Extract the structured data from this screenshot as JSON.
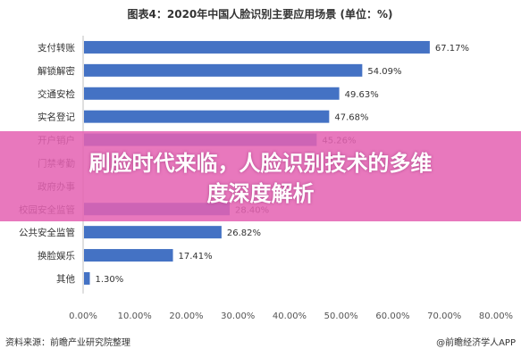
{
  "chart_data": {
    "type": "bar",
    "orientation": "horizontal",
    "title": "图表4：2020年中国人脸识别主要应用场景 (单位：%)",
    "categories": [
      "支付转账",
      "解锁解密",
      "交通安检",
      "实名登记",
      "开户销户",
      "门禁考勤",
      "政府办事",
      "校园安全监管",
      "公共安全监管",
      "换脸娱乐",
      "其他"
    ],
    "values": [
      67.17,
      54.09,
      49.63,
      47.68,
      45.26,
      null,
      null,
      28.4,
      26.82,
      17.41,
      1.3
    ],
    "value_labels": [
      "67.17%",
      "54.09%",
      "49.63%",
      "47.68%",
      "45.26%",
      "",
      "",
      "28.40%",
      "26.82%",
      "17.41%",
      "1.30%"
    ],
    "xlim": [
      0,
      80
    ],
    "ticks": [
      0,
      10,
      20,
      30,
      40,
      50,
      60,
      70,
      80
    ],
    "tick_labels": [
      "0.00%",
      "10.00%",
      "20.00%",
      "30.00%",
      "40.00%",
      "50.00%",
      "60.00%",
      "70.00%",
      "80.00%"
    ],
    "grid": false,
    "legend": "none",
    "bar_color": "#4472C4"
  },
  "footer": {
    "source": "资料来源：前瞻产业研究院整理",
    "brand": "@前瞻经济学人APP"
  },
  "banner": {
    "line1": "刷脸时代来临，人脸识别技术的多维",
    "line2": "度深度解析",
    "color": "#E462B2"
  }
}
